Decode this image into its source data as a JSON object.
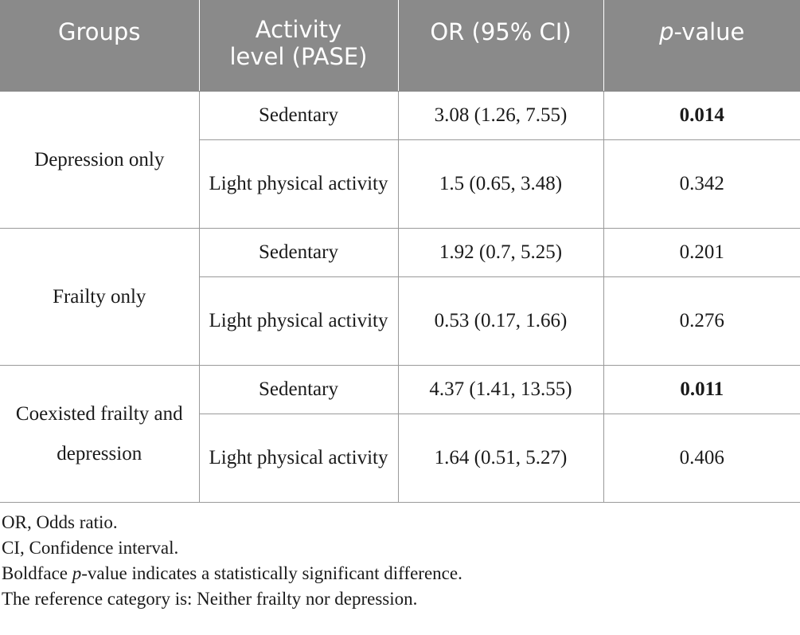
{
  "table": {
    "headers": {
      "groups": "Groups",
      "activity_line1": "Activity",
      "activity_line2": "level (PASE)",
      "or": "OR (95% CI)",
      "p_italic": "p",
      "p_rest": "-value"
    },
    "groups": [
      {
        "name": "Depression only",
        "rows": [
          {
            "activity": "Sedentary",
            "or": "3.08 (1.26, 7.55)",
            "p": "0.014",
            "significant": true
          },
          {
            "activity": "Light physical activity",
            "or": "1.5 (0.65, 3.48)",
            "p": "0.342",
            "significant": false
          }
        ]
      },
      {
        "name": "Frailty only",
        "rows": [
          {
            "activity": "Sedentary",
            "or": "1.92 (0.7, 5.25)",
            "p": "0.201",
            "significant": false
          },
          {
            "activity": "Light physical activity",
            "or": "0.53 (0.17, 1.66)",
            "p": "0.276",
            "significant": false
          }
        ]
      },
      {
        "name": "Coexisted frailty and depression",
        "rows": [
          {
            "activity": "Sedentary",
            "or": "4.37 (1.41, 13.55)",
            "p": "0.011",
            "significant": true
          },
          {
            "activity": "Light physical activity",
            "or": "1.64 (0.51, 5.27)",
            "p": "0.406",
            "significant": false
          }
        ]
      }
    ]
  },
  "notes": {
    "or_note": "OR, Odds ratio.",
    "ci_note": "CI, Confidence interval.",
    "bold_pre": "Boldface ",
    "bold_italic": "p",
    "bold_post": "-value indicates a statistically significant difference.",
    "reference": "The reference category is: Neither frailty nor depression."
  }
}
